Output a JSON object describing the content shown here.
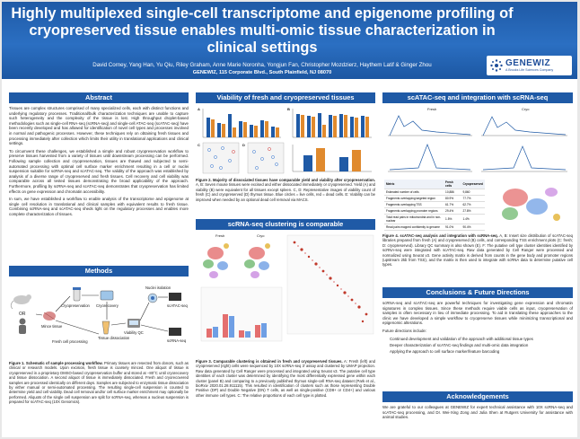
{
  "header": {
    "title": "Highly multiplexed single-cell transcriptome and epigenome profiling of cryopreserved tissue enables multi-omic tissue characterization in clinical settings",
    "authors": "David Corney, Yang Han, Yu Qiu, Riley Graham, Anne Marie Noronha, Yongjun Fan, Christopher Mozdzierz, Haythem Latif & Ginger Zhou",
    "affiliation": "GENEWIZ, 115 Corporate Blvd., South Plainfield, NJ 08070",
    "logo_text": "GENEWIZ",
    "logo_sub": "A Brooks Life Sciences Company"
  },
  "abstract": {
    "heading": "Abstract",
    "paragraphs": [
      "Tissues are complex structures comprised of many specialized cells, each with distinct functions and underlying regulatory processes. Traditional/bulk characterization techniques are unable to capture such heterogeneity and the complexity of the tissue is lost. High throughput droplet-based methodologies such as single-cell RNA-seq (scRNA-seq) and single-cell ATAC-seq (scATAC-seq) have been recently developed and has allowed for identification of novel cell types and processes involved in normal and pathogenic processes. However, these techniques rely on obtaining fresh tissues and processing immediately after collection which limits their utility in translational applications and clinical settings.",
      "To circumvent these challenges, we established a simple and robust cryopreservation workflow to preserve tissues harvested from a variety of tissues until downstream processing can be performed. Following sample collection and cryopreservation, tissues are thawed and subjected to semi-automated processing with optimal cell surface marker enrichment resulting in a cell or nuclei suspension suitable for scRNA-seq and scATAC-seq. The validity of the approach was established by analysis of a diverse range of cryopreserved and fresh tissues. Cell recovery and cell viability was comparable across all tested tissues demonstrating the broad applicability of the approach. Furthermore, profiling by scRNA-seq and scATAC-seq demonstrates that cryopreservation has limited effects on gene expression and chromatin accessibility.",
      "In sum, we have established a workflow to enable analysis of the transcriptome and epigenome at single cell resolution in translational and clinical samples with equivalent results to fresh tissue. Combining scRNA-seq and scATAC-seq sheds light on the regulatory processes and enables more complete characterization of tissues."
    ]
  },
  "methods": {
    "heading": "Methods",
    "labels": {
      "or": "OR",
      "mince": "Mince tissue",
      "cryopreservation": "Cryopreservation",
      "cryorecovery": "Cryorecovery",
      "fresh": "Fresh cell processing",
      "dissociation": "Tissue dissociation",
      "viability": "Viability QC",
      "nuclei": "Nuclei isolation",
      "scatac": "scATAC-seq",
      "scrna": "scRNA-seq"
    },
    "caption_bold": "Figure 1. Schematic of sample processing workflow.",
    "caption": " Primary tissues are resected from donors, such as clinical or research models. Upon excision, fresh tissue is coarsely minced. One aliquot of tissue is cryopreserved in a proprietary DMSO-based cryopreservation buffer and stored at −80°C until cryorecovery and tissue dissociation. A second aliquot of tissue is immediately dissociated. Fresh and cryorecovered samples are processed identically on different days. Samples are subjected to enzymatic tissue dissociation by either manual or semi-automated processing. The resulting single-cell suspension is counted to determine yield and cell viability. Dead cell removal and/or cell surface marker enrichment may optionally be performed. Aliquots of the single cell suspension are split for scRNA-seq, whereas a nucleus suspension is prepared for scATAC-seq (10X Genomics)."
  },
  "viability": {
    "heading": "Viability of fresh and cryopreserved tissues",
    "panel_A": "A",
    "panel_B": "B",
    "panel_C": "C",
    "panel_D": "D",
    "caption_bold": "Figure 2. Majority of dissociated tissues have comparable yield and viability after cryopreservation.",
    "caption": " A, B: Seven mouse tissues were excised and either dissociated immediately or cryopreserved. Yield (A) and viability (B) were equivalent for all tissues except spleen. C, D: Representative images of viability count of fresh (C) and cryopreserved (D) thymus tissue. Blue circles = live cells, red = dead cells. E: Viability can be improved when needed by an optional dead cell removal via MACS."
  },
  "scrna": {
    "heading": "scRNA-seq clustering is comparable",
    "umap_fresh": "Fresh",
    "umap_cryo": "Cryo",
    "caption_bold": "Figure 3. Comparable clustering is obtained in fresh and cryopreserved tissues.",
    "caption": " A: Fresh (left) and cryopreserved (right) cells were sequenced by 10X scRNA-seq 3' assay and clustered by UMAP projection. Raw data generated by Cell Ranger were processed and integrated using Seurat v3. The putative cell type identities of each cluster was determined by identifying the most differentially expressed gene within each cluster (panel B) and comparing to a previously published thymus single-cell RNA-seq dataset (Park et al., bioRxiv 2020.01.28.911115). This resulted in identification of clusters such as those representing Double Positive (DP) and Double Negative (DN) T cells, as well as single-positive (CD8+ or CD4+) and various other immune cell types. C: The relative proportions of each cell type is plotted."
  },
  "scatac": {
    "heading": "scATAC-seq and integration with scRNA-seq",
    "umap_fresh": "Fresh",
    "umap_cryo": "Cryo",
    "table_headers": [
      "Metric",
      "Fresh cells",
      "Cryopreserved"
    ],
    "table_rows": [
      [
        "Estimated number of cells",
        "10,886",
        "9,860"
      ],
      [
        "Fragments overlapping targeted region",
        "80.9%",
        "77.7%"
      ],
      [
        "Fragments overlapping TSS",
        "61.7%",
        "62.7%"
      ],
      [
        "Fragments overlapping promoter regions",
        "29.4%",
        "27.8%"
      ],
      [
        "Total read pairs in mitochondria and in non-nuclear",
        "1.5%",
        "1.4%"
      ],
      [
        "Read pairs mapped confidently to genome",
        "91.0%",
        "90.4%"
      ]
    ],
    "caption_bold": "Figure 4. scATAC-seq analysis and integration with scRNA-seq.",
    "caption": " A, B: Insert size distribution of scATAC-seq libraries prepared from fresh (A) and cryopreserved (B) cells, and corresponding TSS enrichment plots (C: fresh; D: cryopreserved). Library QC summary is also shown (E). F: The putative cell type cluster identities identified by scRNA-seq were integrated with scATAC-seq. Raw data generated by Cell Ranger were processed and normalized using Seurat v3. Gene activity matrix is derived from counts in the gene body and promoter regions (upstream 2kb from TSS), and the matrix is then used to integrate with scRNA data to determine putative cell types."
  },
  "conclusions": {
    "heading": "Conclusions & Future Directions",
    "text": "scRNA-seq and scATAC-seq are powerful techniques for investigating gene expression and chromatin signatures in complex tissues. Since these methods require viable cells as input, cryopreservation of samples is often necessary in lieu of immediate processing. To aid in translating these approaches to the clinic we have developed a simple workflow to cryopreserve tissues while minimizing transcriptional and epigenomic alterations.",
    "future_label": "Future directions include:",
    "future": [
      "Continued development and validation of the approach with additional tissue types",
      "Deeper characterization of scATAC-seq findings and multi-omic data integration",
      "Applying the approach to cell surface marker/feature barcoding"
    ]
  },
  "acknowledgements": {
    "heading": "Acknowledgements",
    "text": "We are grateful to our colleagues at GENEWIZ for expert technical assistance with 10X scRNA-seq and scATAC-seq processing, and Dr. Wei-Xing Zong and Julia Shen at Rutgers University for assistance with animal studies."
  }
}
